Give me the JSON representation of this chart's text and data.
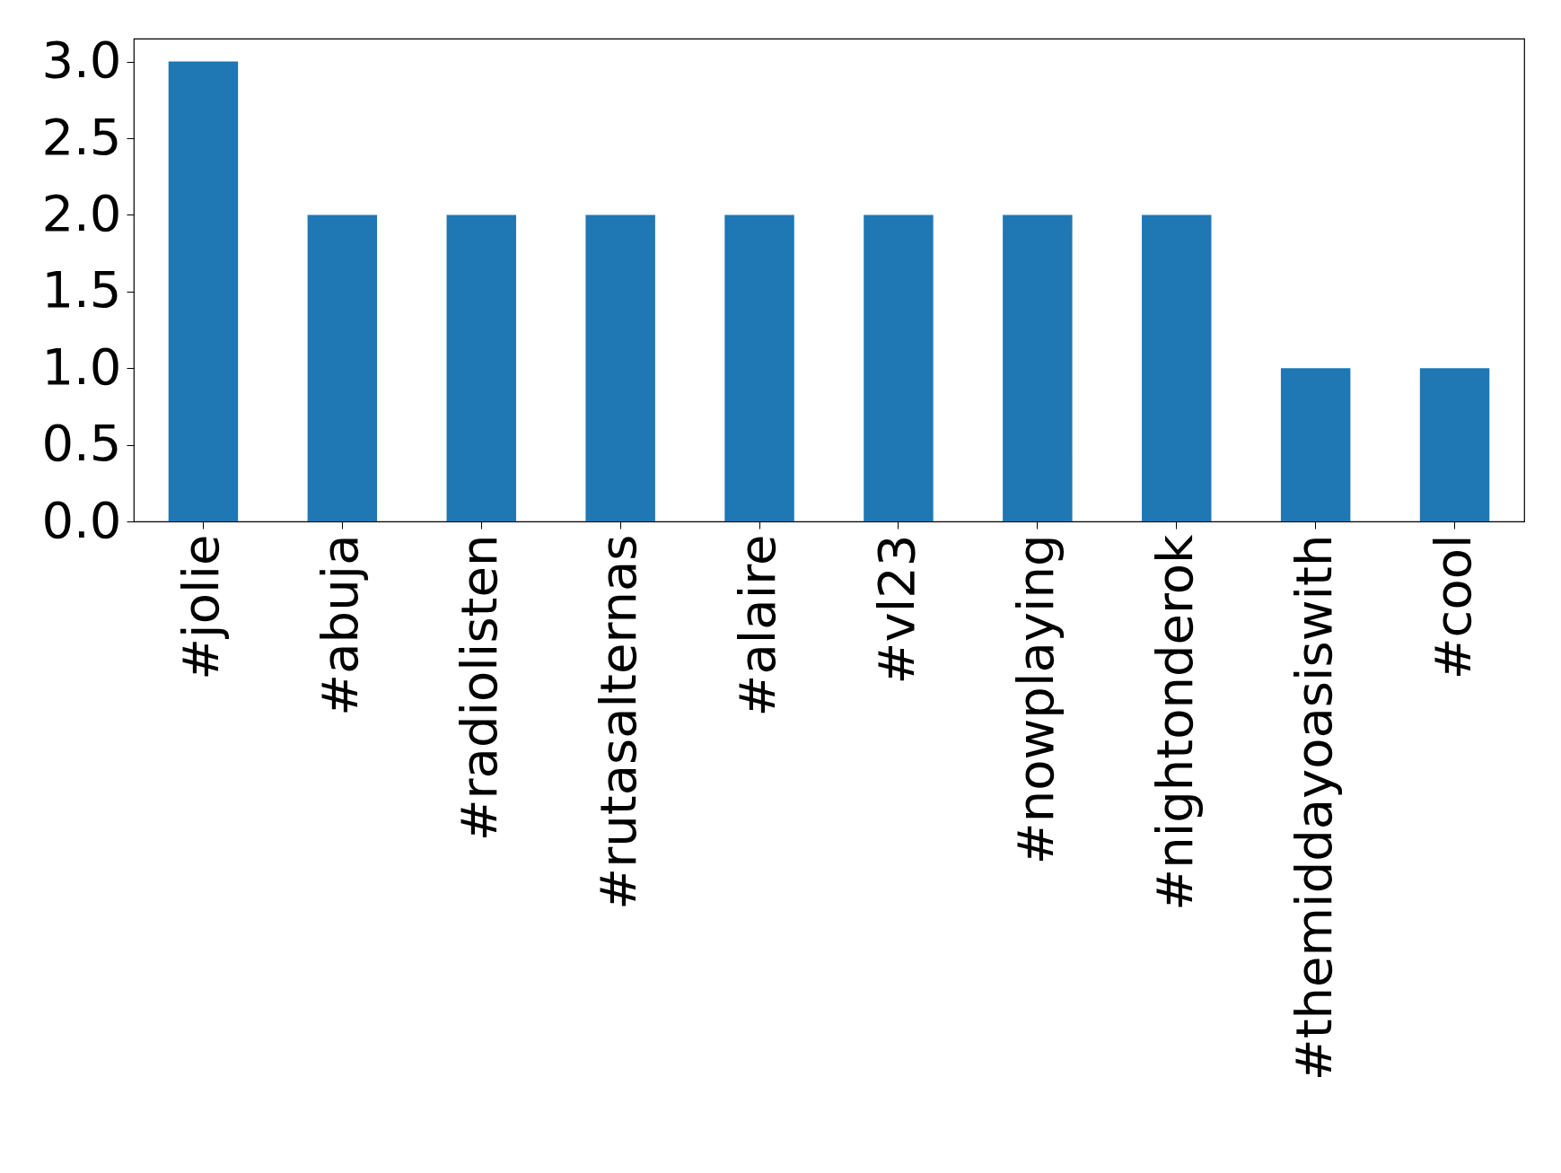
{
  "chart_data": {
    "type": "bar",
    "categories": [
      "#jolie",
      "#abuja",
      "#radiolisten",
      "#rutasalternas",
      "#alaire",
      "#vl23",
      "#nowplaying",
      "#nightonderok",
      "#themiddayoasiswith",
      "#cool"
    ],
    "values": [
      3,
      2,
      2,
      2,
      2,
      2,
      2,
      2,
      1,
      1
    ],
    "color": "#1f77b4",
    "ylim": [
      0,
      3.15
    ],
    "yticks": [
      {
        "value": 0,
        "label": "0.0"
      },
      0.5,
      {
        "value": 1,
        "label": "1.0"
      },
      1.5,
      {
        "value": 2,
        "label": "2.0"
      },
      2.5,
      {
        "value": 3,
        "label": "3.0"
      }
    ],
    "grid": false
  }
}
